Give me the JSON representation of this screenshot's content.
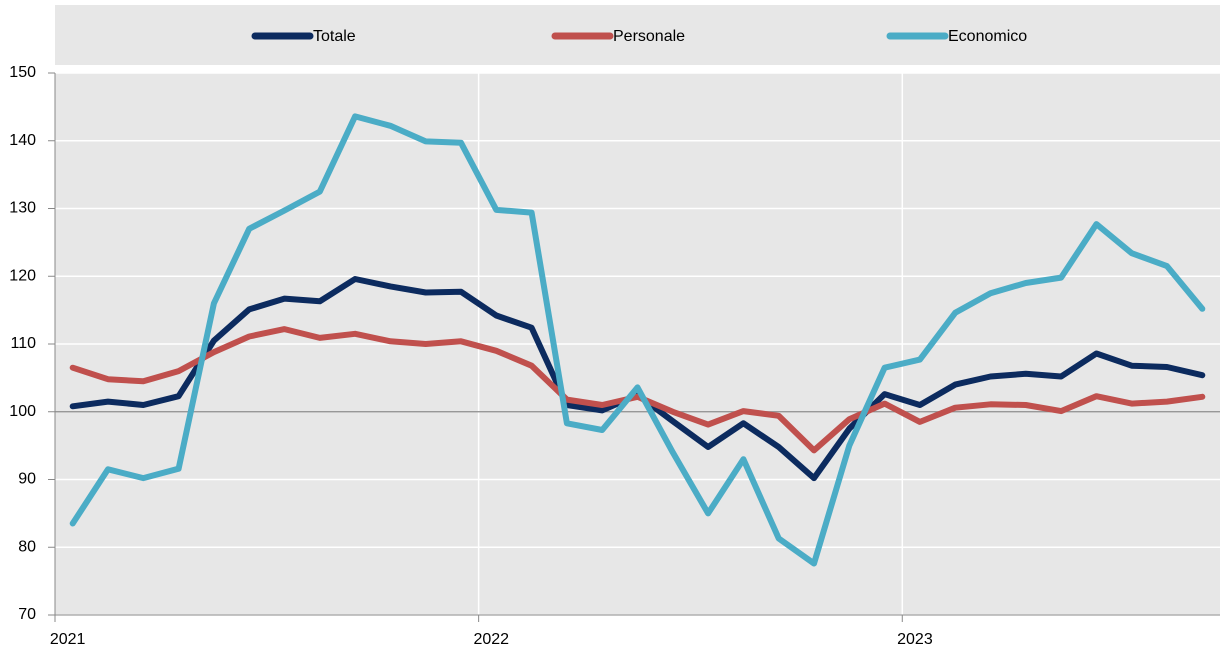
{
  "chart_data": {
    "type": "line",
    "categories": [
      "2021",
      null,
      null,
      null,
      null,
      null,
      null,
      null,
      null,
      null,
      null,
      null,
      "2022",
      null,
      null,
      null,
      null,
      null,
      null,
      null,
      null,
      null,
      null,
      null,
      "2023",
      null,
      null,
      null,
      null,
      null,
      null,
      null,
      null
    ],
    "series": [
      {
        "name": "Totale",
        "color": "#0c2b5f",
        "values": [
          100.8,
          101.5,
          101,
          102.3,
          110.5,
          115.1,
          116.7,
          116.3,
          119.6,
          118.5,
          117.6,
          117.7,
          114.2,
          112.4,
          101,
          100.2,
          102.5,
          98.6,
          94.8,
          98.3,
          94.8,
          90.2,
          97.5,
          102.6,
          101,
          104,
          105.2,
          105.6,
          105.2,
          108.6,
          106.8,
          106.6,
          105.4
        ]
      },
      {
        "name": "Personale",
        "color": "#c0504d",
        "values": [
          106.5,
          104.8,
          104.5,
          106,
          108.8,
          111.1,
          112.2,
          110.9,
          111.5,
          110.4,
          110,
          110.4,
          109,
          106.8,
          101.8,
          101,
          102.2,
          100,
          98.1,
          100.1,
          99.4,
          94.3,
          98.9,
          101.2,
          98.5,
          100.6,
          101.1,
          101,
          100.1,
          102.3,
          101.2,
          101.5,
          102.2
        ]
      },
      {
        "name": "Economico",
        "color": "#4bacc6",
        "values": [
          83.5,
          91.5,
          90.2,
          91.6,
          116,
          127,
          129.7,
          132.5,
          143.6,
          142.2,
          139.9,
          139.7,
          129.8,
          129.4,
          98.3,
          97.3,
          103.6,
          94,
          85,
          93,
          81.3,
          77.6,
          95,
          106.5,
          107.7,
          114.6,
          117.5,
          119,
          119.8,
          127.7,
          123.4,
          121.5,
          115.2
        ]
      }
    ],
    "ylim": [
      70,
      150
    ],
    "yticks": [
      70,
      80,
      90,
      100,
      110,
      120,
      130,
      140,
      150
    ],
    "reference_line": 100,
    "grid": true,
    "legend": "top"
  }
}
